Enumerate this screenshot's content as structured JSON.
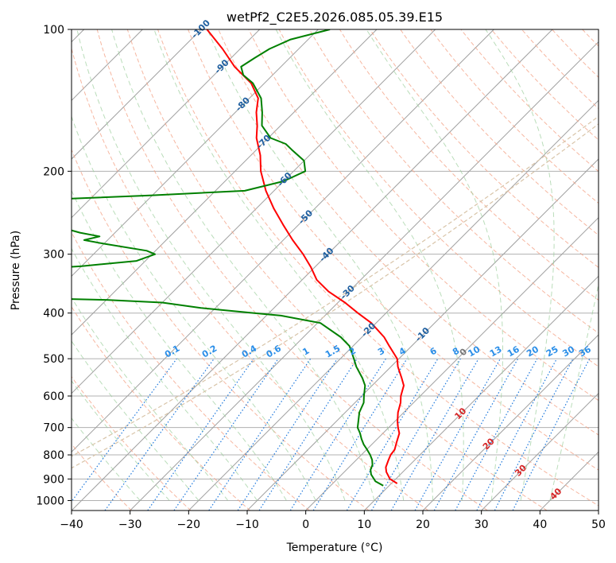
{
  "chart_data": {
    "type": "line",
    "title": "wetPf2_C2E5.2026.085.05.39.E15",
    "xlabel": "Temperature (°C)",
    "ylabel": "Pressure (hPa)",
    "xlim": [
      -40,
      50
    ],
    "ylim": [
      1050,
      100
    ],
    "y_scale": "log",
    "skew": true,
    "grid": true,
    "x_ticks": [
      -40,
      -30,
      -20,
      -10,
      0,
      10,
      20,
      30,
      40,
      50
    ],
    "y_ticks": [
      100,
      200,
      300,
      400,
      500,
      600,
      700,
      800,
      900,
      1000
    ],
    "series": [
      {
        "color": "#ff0000",
        "pressure": [
          920,
          900,
          870,
          850,
          820,
          800,
          780,
          750,
          720,
          700,
          680,
          650,
          620,
          600,
          570,
          550,
          520,
          500,
          470,
          450,
          420,
          400,
          380,
          360,
          340,
          320,
          300,
          280,
          260,
          240,
          220,
          200,
          185,
          170,
          160,
          150,
          140,
          130,
          120,
          110,
          100
        ],
        "temperature": [
          11,
          9,
          7.2,
          6.3,
          5.5,
          5,
          4.8,
          3.8,
          2.8,
          1.6,
          0.5,
          -1,
          -2.2,
          -3.3,
          -4.6,
          -6.2,
          -8.8,
          -10.3,
          -13.8,
          -16.2,
          -20.8,
          -24.8,
          -28.8,
          -33.5,
          -37.5,
          -40.6,
          -44.2,
          -48.4,
          -52.6,
          -57,
          -61.4,
          -65.6,
          -68.4,
          -72,
          -74,
          -76.4,
          -78.5,
          -82.3,
          -87.9,
          -93,
          -99
        ]
      },
      {
        "color": "#008000",
        "pressure": [
          930,
          910,
          880,
          860,
          840,
          820,
          800,
          780,
          760,
          740,
          720,
          700,
          680,
          650,
          620,
          600,
          570,
          550,
          520,
          500,
          470,
          450,
          420,
          405,
          400,
          390,
          380,
          375,
          370,
          330,
          318,
          310,
          300,
          295,
          285,
          280,
          275,
          270,
          265,
          255,
          252,
          250,
          230,
          225,
          220,
          210,
          200,
          190,
          180,
          175,
          170,
          160,
          150,
          140,
          130,
          125,
          120,
          115,
          110,
          105,
          100
        ],
        "temperature": [
          9,
          6.9,
          5,
          4.1,
          3.6,
          2.7,
          1.5,
          0.1,
          -1.4,
          -2.7,
          -3.9,
          -5.3,
          -6.2,
          -7.6,
          -8.5,
          -9.6,
          -11.2,
          -12.9,
          -15.9,
          -17.7,
          -20.6,
          -23.6,
          -29.5,
          -37.5,
          -42.5,
          -52.5,
          -60,
          -70,
          -92,
          -98,
          -80,
          -71.5,
          -69.5,
          -71.5,
          -80,
          -84,
          -82,
          -86,
          -89,
          -92,
          -96,
          -96,
          -98,
          -80,
          -65,
          -60,
          -58,
          -60,
          -64,
          -66,
          -69.6,
          -73.2,
          -75.4,
          -78,
          -82,
          -85,
          -86.8,
          -86,
          -85,
          -83,
          -78
        ]
      }
    ],
    "isotherm_labels": [
      "-100",
      "-90",
      "-80",
      "-70",
      "-60",
      "-50",
      "-40",
      "-30",
      "-20",
      "-10",
      "0",
      "10",
      "20",
      "30",
      "40"
    ],
    "mixing_ratio_labels": [
      "0.1",
      "0.2",
      "0.4",
      "0.6",
      "1",
      "1.5",
      "2",
      "3",
      "4",
      "6",
      "8",
      "10",
      "13",
      "16",
      "20",
      "25",
      "30",
      "36"
    ]
  }
}
